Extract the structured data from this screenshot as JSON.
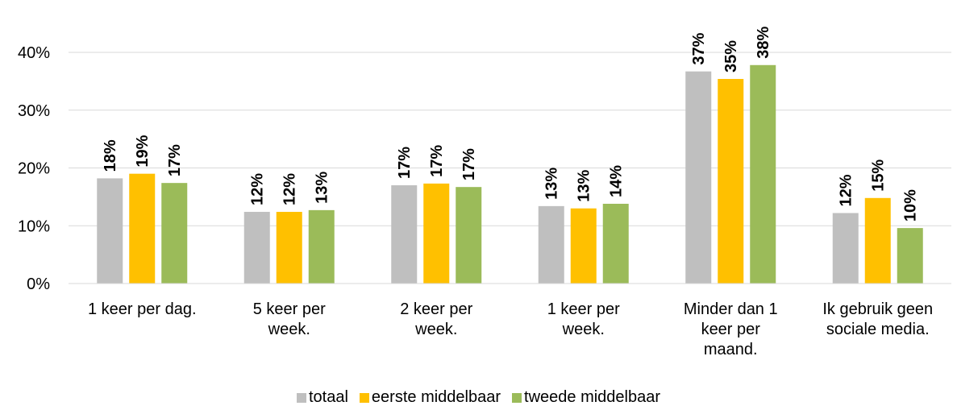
{
  "chart_data": {
    "type": "bar",
    "categories": [
      "1 keer per dag.",
      "5 keer per\nweek.",
      "2 keer per\nweek.",
      "1 keer per\nweek.",
      "Minder dan 1\nkeer per\nmaand.",
      "Ik gebruik geen\nsociale media."
    ],
    "series": [
      {
        "name": "totaal",
        "color": "#bfbfbf",
        "values": [
          18.2,
          12.4,
          17.0,
          13.4,
          36.7,
          12.2
        ],
        "value_labels": [
          "18%",
          "12%",
          "17%",
          "13%",
          "37%",
          "12%"
        ]
      },
      {
        "name": "eerste middelbaar",
        "color": "#ffc000",
        "values": [
          19.0,
          12.4,
          17.3,
          13.0,
          35.4,
          14.8
        ],
        "value_labels": [
          "19%",
          "12%",
          "17%",
          "13%",
          "35%",
          "15%"
        ]
      },
      {
        "name": "tweede middelbaar",
        "color": "#9bbb59",
        "values": [
          17.4,
          12.7,
          16.7,
          13.8,
          37.8,
          9.6
        ],
        "value_labels": [
          "17%",
          "13%",
          "17%",
          "14%",
          "38%",
          "10%"
        ]
      }
    ],
    "ylim": [
      0,
      40
    ],
    "yticks": [
      {
        "value": 0,
        "label": "0%"
      },
      {
        "value": 10,
        "label": "10%"
      },
      {
        "value": 20,
        "label": "20%"
      },
      {
        "value": 30,
        "label": "30%"
      },
      {
        "value": 40,
        "label": "40%"
      }
    ],
    "grid": true,
    "legend": "bottom"
  }
}
